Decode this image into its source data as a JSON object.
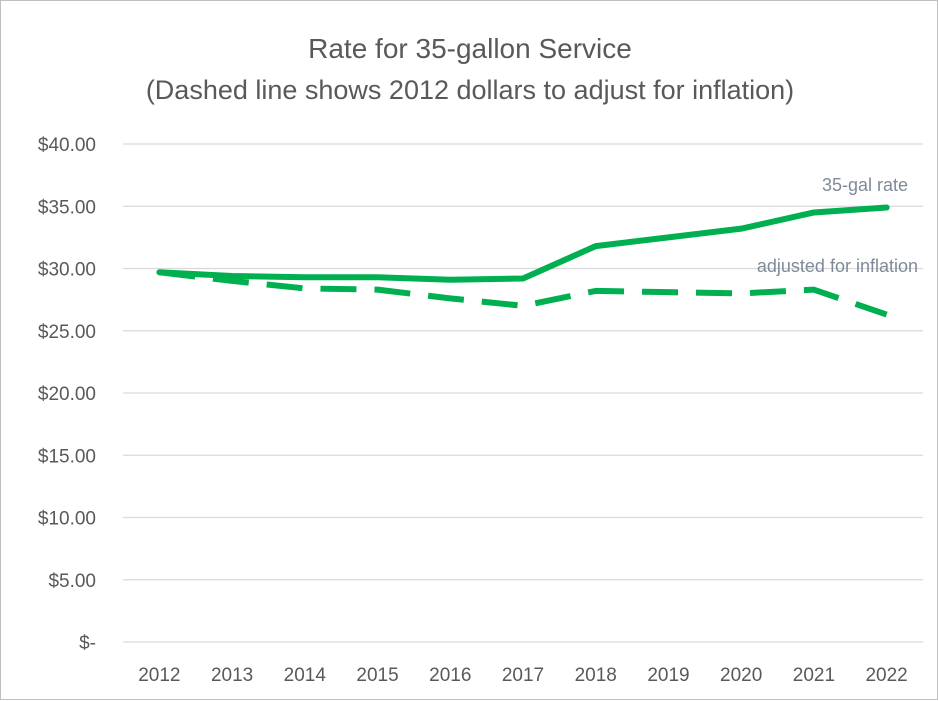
{
  "chart_data": {
    "type": "line",
    "title": "Rate for 35-gallon Service",
    "subtitle": "(Dashed line shows 2012 dollars to adjust for inflation)",
    "xlabel": "",
    "ylabel": "",
    "categories": [
      "2012",
      "2013",
      "2014",
      "2015",
      "2016",
      "2017",
      "2018",
      "2019",
      "2020",
      "2021",
      "2022"
    ],
    "ylim": [
      0,
      40
    ],
    "yticks": [
      0,
      5,
      10,
      15,
      20,
      25,
      30,
      35,
      40
    ],
    "ytick_labels": [
      "$-",
      "$5.00",
      "$10.00",
      "$15.00",
      "$20.00",
      "$25.00",
      "$30.00",
      "$35.00",
      "$40.00"
    ],
    "grid": true,
    "legend": "none",
    "series": [
      {
        "name": "35-gal rate",
        "style": "solid",
        "color": "#00b050",
        "values": [
          29.7,
          29.4,
          29.3,
          29.3,
          29.1,
          29.2,
          31.8,
          32.5,
          33.2,
          34.5,
          34.9
        ]
      },
      {
        "name": "adjusted for inflation",
        "style": "dashed",
        "color": "#00b050",
        "values": [
          29.7,
          29.0,
          28.4,
          28.3,
          27.6,
          27.0,
          28.2,
          28.1,
          28.0,
          28.3,
          26.3
        ]
      }
    ]
  }
}
